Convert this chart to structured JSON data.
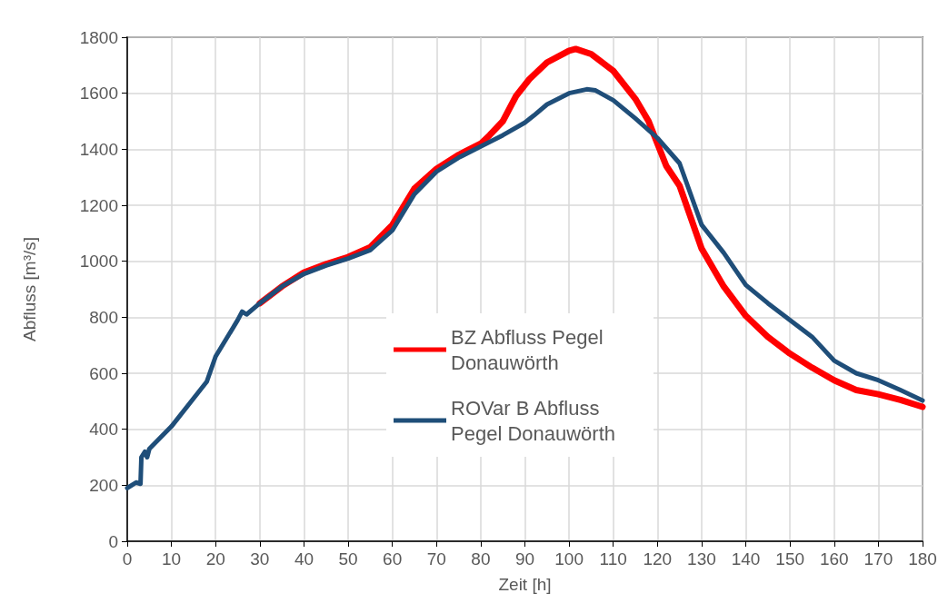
{
  "chart_data": {
    "type": "line",
    "xlabel": "Zeit [h]",
    "ylabel": "Abfluss [m³/s]",
    "xlim": [
      0,
      180
    ],
    "xticks": [
      0,
      10,
      20,
      30,
      40,
      50,
      60,
      70,
      80,
      90,
      100,
      110,
      120,
      130,
      140,
      150,
      160,
      170,
      180
    ],
    "ylim": [
      0,
      1800
    ],
    "yticks": [
      0,
      200,
      400,
      600,
      800,
      1000,
      1200,
      1400,
      1600,
      1800
    ],
    "grid": true,
    "legend": "center",
    "marker": "none",
    "line_style": "solid",
    "series": [
      {
        "name": "BZ Abfluss Pegel Donauwörth",
        "color": "#ff0000",
        "x": [
          30,
          35,
          40,
          45,
          50,
          55,
          60,
          65,
          70,
          75,
          80,
          82,
          85,
          86,
          88,
          91,
          95,
          100,
          101.5,
          105,
          110,
          115,
          118,
          120,
          122,
          125,
          130,
          135,
          140,
          145,
          150,
          155,
          160,
          165,
          170,
          175,
          180
        ],
        "values": [
          850,
          910,
          960,
          990,
          1015,
          1050,
          1130,
          1260,
          1330,
          1380,
          1420,
          1450,
          1500,
          1530,
          1590,
          1650,
          1710,
          1752,
          1758,
          1740,
          1680,
          1580,
          1500,
          1420,
          1340,
          1270,
          1045,
          910,
          805,
          730,
          670,
          620,
          575,
          540,
          525,
          505,
          480
        ]
      },
      {
        "name": "ROVar B Abfluss Pegel Donauwörth",
        "color": "#1f4e79",
        "x": [
          0,
          1,
          2,
          3,
          3.2,
          4,
          4.5,
          5,
          10,
          15,
          18,
          20,
          25,
          26,
          27,
          30,
          35,
          40,
          45,
          50,
          55,
          60,
          65,
          70,
          75,
          80,
          85,
          90,
          92,
          95,
          100,
          104,
          106,
          110,
          115,
          120,
          125,
          130,
          135,
          140,
          145,
          150,
          155,
          160,
          165,
          170,
          175,
          180
        ],
        "values": [
          190,
          200,
          210,
          205,
          300,
          320,
          300,
          330,
          410,
          510,
          570,
          660,
          790,
          820,
          810,
          850,
          910,
          955,
          985,
          1010,
          1040,
          1110,
          1240,
          1320,
          1370,
          1410,
          1450,
          1495,
          1520,
          1560,
          1600,
          1614,
          1610,
          1575,
          1510,
          1440,
          1350,
          1130,
          1030,
          915,
          850,
          790,
          730,
          645,
          600,
          575,
          540,
          503
        ]
      }
    ]
  }
}
